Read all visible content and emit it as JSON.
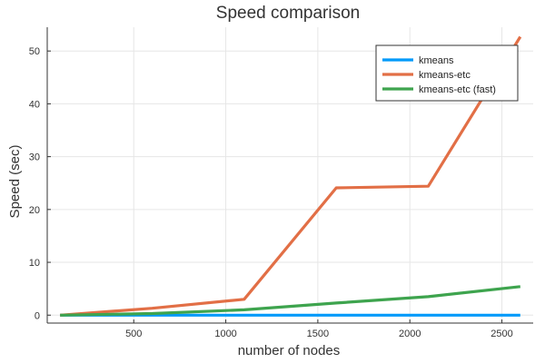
{
  "chart_data": {
    "type": "line",
    "title": "Speed comparison",
    "xlabel": "number of nodes",
    "ylabel": "Speed (sec)",
    "xlim": [
      30,
      2670
    ],
    "ylim": [
      -1.5,
      54.5
    ],
    "xticks": [
      500,
      1000,
      1500,
      2000,
      2500
    ],
    "yticks": [
      0,
      10,
      20,
      30,
      40,
      50
    ],
    "grid": true,
    "legend_position": "top-right",
    "x": [
      100,
      600,
      1100,
      1600,
      2100,
      2600
    ],
    "series": [
      {
        "name": "kmeans",
        "color": "#009AFA",
        "values": [
          0.0,
          0.0,
          0.0,
          0.0,
          0.0,
          0.0
        ]
      },
      {
        "name": "kmeans-etc",
        "color": "#E26F46",
        "values": [
          0.0,
          1.3,
          3.0,
          24.1,
          24.4,
          52.7
        ]
      },
      {
        "name": "kmeans-etc (fast)",
        "color": "#3EA44E",
        "values": [
          0.0,
          0.3,
          1.0,
          2.3,
          3.5,
          5.4
        ]
      }
    ]
  }
}
